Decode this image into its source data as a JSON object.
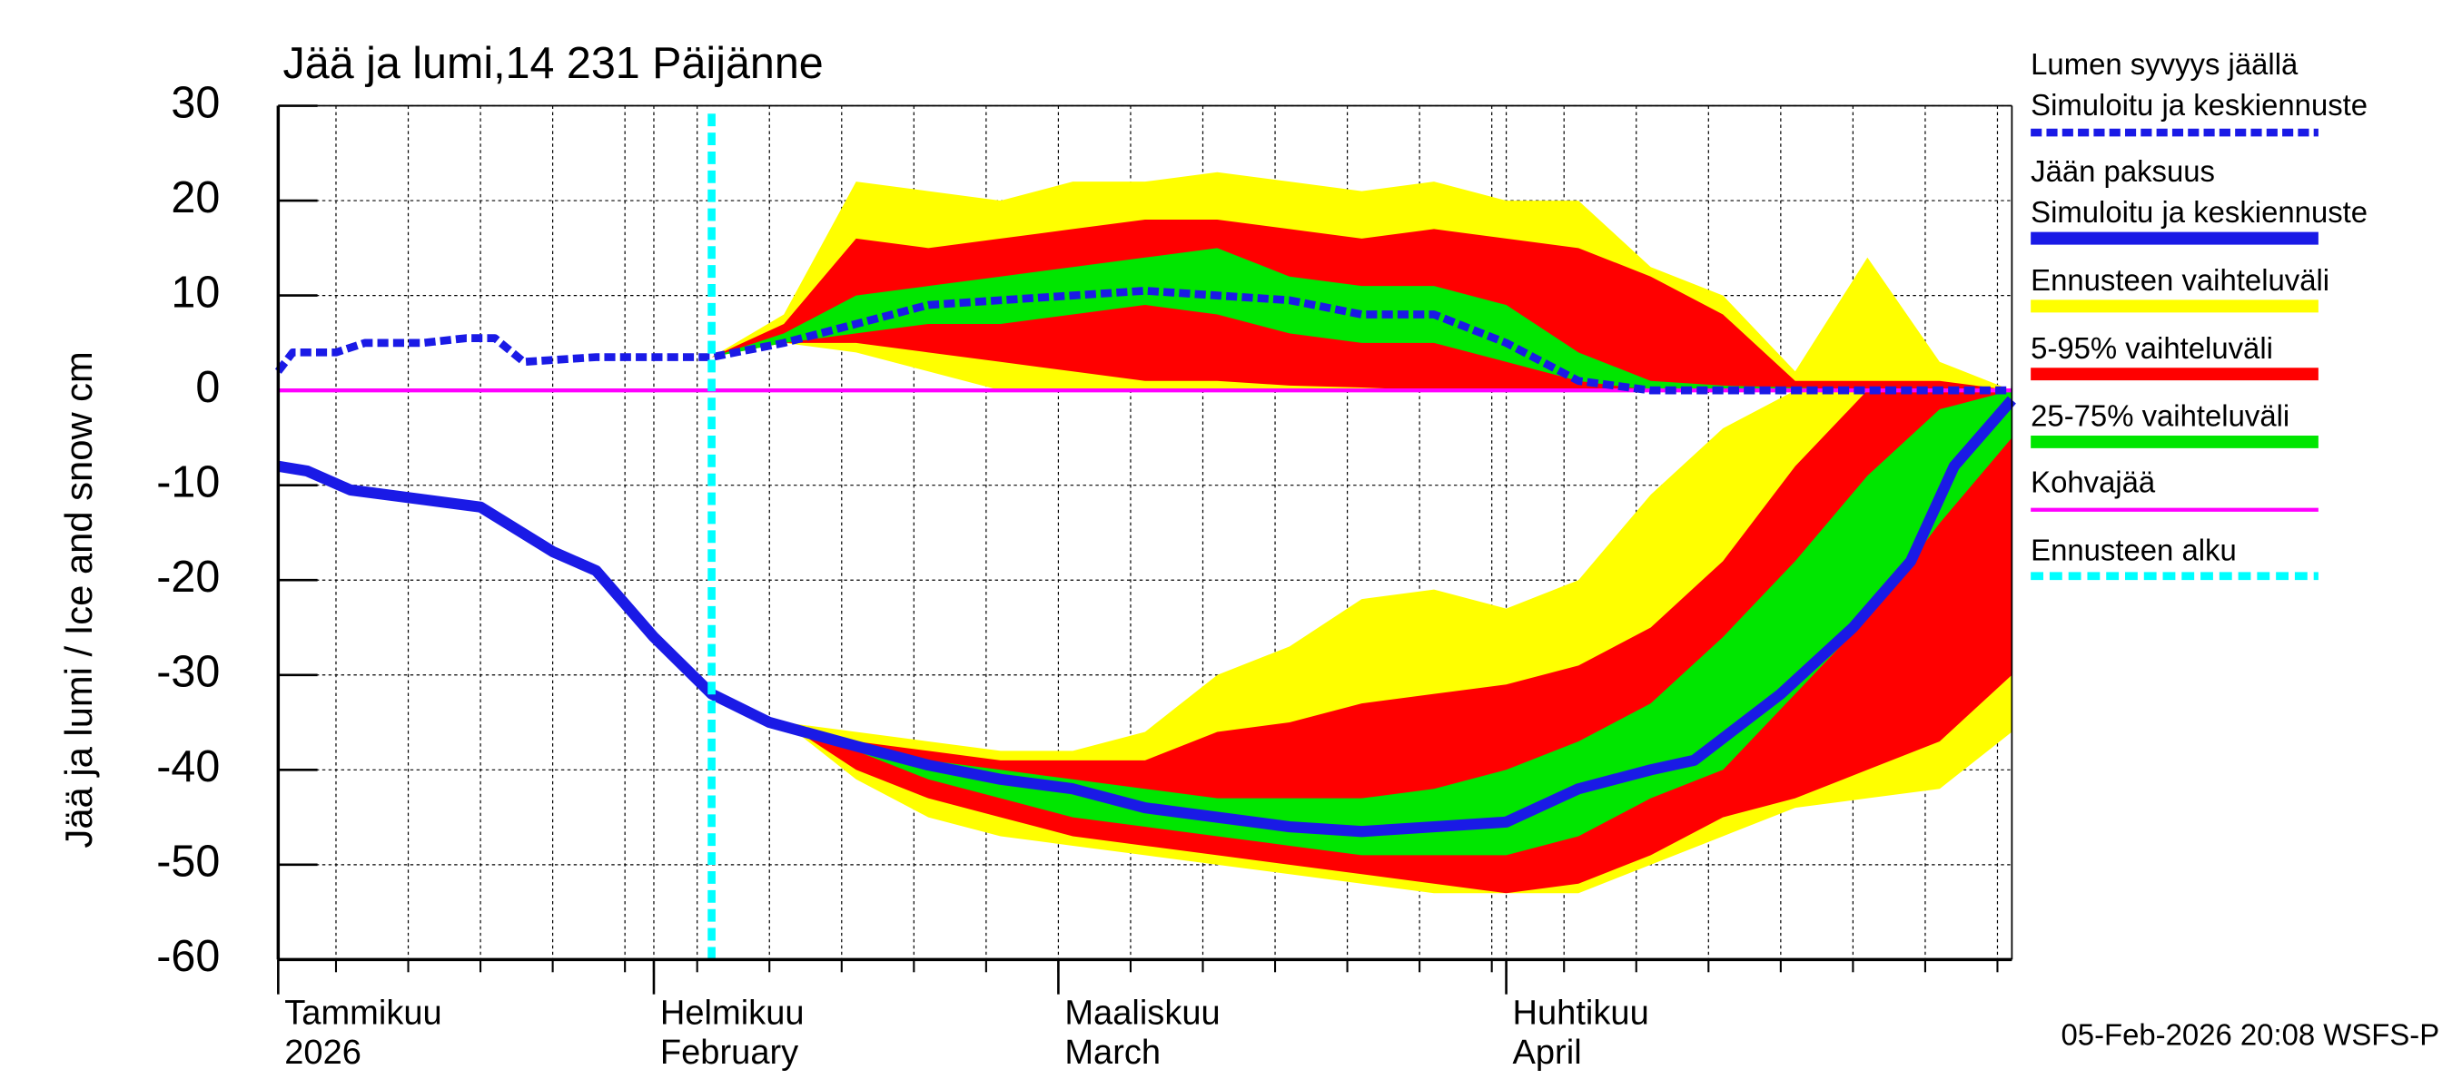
{
  "chart_data": {
    "type": "line",
    "title": "Jää ja lumi,14 231 Päijänne",
    "ylabel": "Jää ja lumi / Ice and snow    cm",
    "footer": "05-Feb-2026 20:08 WSFS-P",
    "xlim": [
      6,
      126
    ],
    "ylim": [
      -60,
      30
    ],
    "yticks": [
      -60,
      -50,
      -40,
      -30,
      -20,
      -10,
      0,
      10,
      20,
      30
    ],
    "xticks": [
      {
        "value": 6,
        "label": "Tammikuu"
      },
      {
        "value": 32,
        "label": "Helmikuu"
      },
      {
        "value": 60,
        "label": "Maaliskuu"
      },
      {
        "value": 91,
        "label": "Huhtikuu"
      }
    ],
    "xticks_sub": [
      "2026",
      "February",
      "March",
      "April"
    ],
    "xgrid": [
      10,
      15,
      20,
      25,
      30,
      32,
      35,
      40,
      45,
      50,
      55,
      60,
      65,
      70,
      75,
      80,
      85,
      90,
      91,
      95,
      100,
      105,
      110,
      115,
      120,
      125
    ],
    "grid": true,
    "lines": [
      {
        "name": "Lumen syvyys jäällä",
        "name2": "Simuloitu ja keskiennuste",
        "color": "#1a1ae6",
        "dash": true,
        "x": [
          6,
          7,
          10,
          12,
          16,
          19,
          21,
          23,
          28,
          36,
          41,
          46,
          51,
          56,
          61,
          66,
          71,
          76,
          81,
          86,
          91,
          96,
          101,
          126
        ],
        "values": [
          2,
          4,
          4,
          5,
          5,
          5.5,
          5.5,
          3,
          3.5,
          3.5,
          5,
          7,
          9,
          9.5,
          10,
          10.5,
          10,
          9.5,
          8,
          8,
          5,
          1,
          0,
          0
        ]
      },
      {
        "name": "Jään paksuus",
        "name2": "Simuloitu ja keskiennuste",
        "color": "#1a1ae6",
        "dash": false,
        "x": [
          6,
          8,
          11,
          16,
          20,
          25,
          28,
          32,
          36,
          40,
          46,
          51,
          56,
          61,
          66,
          71,
          76,
          81,
          86,
          91,
          96,
          101,
          104,
          110,
          115,
          119,
          122,
          126
        ],
        "values": [
          -8,
          -8.5,
          -10.5,
          -11.5,
          -12.3,
          -17,
          -19,
          -26,
          -32,
          -35,
          -37.5,
          -39.5,
          -41,
          -42,
          -44,
          -45,
          -46,
          -46.5,
          -46,
          -45.5,
          -42,
          -40,
          -39,
          -32,
          -25,
          -18,
          -8,
          -1
        ]
      },
      {
        "name": "Kohvajää",
        "color": "#ff00ff",
        "dash": false,
        "x": [
          6,
          126
        ],
        "values": [
          0,
          0
        ]
      }
    ],
    "bands": [
      {
        "name": "Ennusteen vaihteluväli",
        "color": "#ffff00",
        "x": [
          36,
          41,
          46,
          51,
          56,
          61,
          66,
          71,
          76,
          81,
          86,
          91,
          96,
          101,
          106,
          111,
          116,
          121,
          126
        ],
        "snow_upper": [
          3.5,
          8,
          22,
          21,
          20,
          22,
          22,
          23,
          22,
          21,
          22,
          20,
          20,
          13,
          10,
          2,
          14,
          3,
          0
        ],
        "snow_lower": [
          3.5,
          5,
          4,
          2,
          0,
          0,
          0,
          0,
          0,
          0,
          0,
          0,
          0,
          0,
          0,
          0,
          0,
          0,
          0
        ],
        "ice_upper": [
          -32,
          -35,
          -36,
          -37,
          -38,
          -38,
          -36,
          -30,
          -27,
          -22,
          -21,
          -23,
          -20,
          -11,
          -4,
          0,
          0,
          0,
          0
        ],
        "ice_lower": [
          -32,
          -35,
          -41,
          -45,
          -47,
          -48,
          -49,
          -50,
          -51,
          -52,
          -53,
          -53,
          -53,
          -50,
          -47,
          -44,
          -43,
          -42,
          -36
        ]
      },
      {
        "name": "5-95% vaihteluväli",
        "color": "#ff0000",
        "x": [
          36,
          41,
          46,
          51,
          56,
          61,
          66,
          71,
          76,
          81,
          86,
          91,
          96,
          101,
          106,
          111,
          116,
          121,
          126
        ],
        "snow_upper": [
          3.5,
          7,
          16,
          15,
          16,
          17,
          18,
          18,
          17,
          16,
          17,
          16,
          15,
          12,
          8,
          1,
          1,
          1,
          0
        ],
        "snow_lower": [
          3.5,
          5,
          5,
          4,
          3,
          2,
          1,
          1,
          0.5,
          0.3,
          0,
          0,
          0,
          0,
          0,
          0,
          0,
          0,
          0
        ],
        "ice_upper": [
          -32,
          -35,
          -37,
          -38,
          -39,
          -39,
          -39,
          -36,
          -35,
          -33,
          -32,
          -31,
          -29,
          -25,
          -18,
          -8,
          0,
          0,
          0
        ],
        "ice_lower": [
          -32,
          -35,
          -40,
          -43,
          -45,
          -47,
          -48,
          -49,
          -50,
          -51,
          -52,
          -53,
          -52,
          -49,
          -45,
          -43,
          -40,
          -37,
          -30
        ]
      },
      {
        "name": "25-75% vaihteluväli",
        "color": "#00e600",
        "x": [
          36,
          41,
          46,
          51,
          56,
          61,
          66,
          71,
          76,
          81,
          86,
          91,
          96,
          101,
          106,
          111,
          116,
          121,
          126
        ],
        "snow_upper": [
          3.5,
          6,
          10,
          11,
          12,
          13,
          14,
          15,
          12,
          11,
          11,
          9,
          4,
          1,
          0.5,
          0.3,
          0,
          0,
          0
        ],
        "snow_lower": [
          3.5,
          5,
          6,
          7,
          7,
          8,
          9,
          8,
          6,
          5,
          5,
          3,
          1,
          0,
          0,
          0,
          0,
          0,
          0
        ],
        "ice_upper": [
          -32,
          -35,
          -37,
          -39,
          -40,
          -41,
          -42,
          -43,
          -43,
          -43,
          -42,
          -40,
          -37,
          -33,
          -26,
          -18,
          -9,
          -2,
          0
        ],
        "ice_lower": [
          -32,
          -35,
          -38,
          -41,
          -43,
          -45,
          -46,
          -47,
          -48,
          -49,
          -49,
          -49,
          -47,
          -43,
          -40,
          -32,
          -24,
          -14,
          -5
        ]
      }
    ],
    "forecast_start": {
      "name": "Ennusteen alku",
      "color": "#00ffff",
      "x": 36
    }
  }
}
